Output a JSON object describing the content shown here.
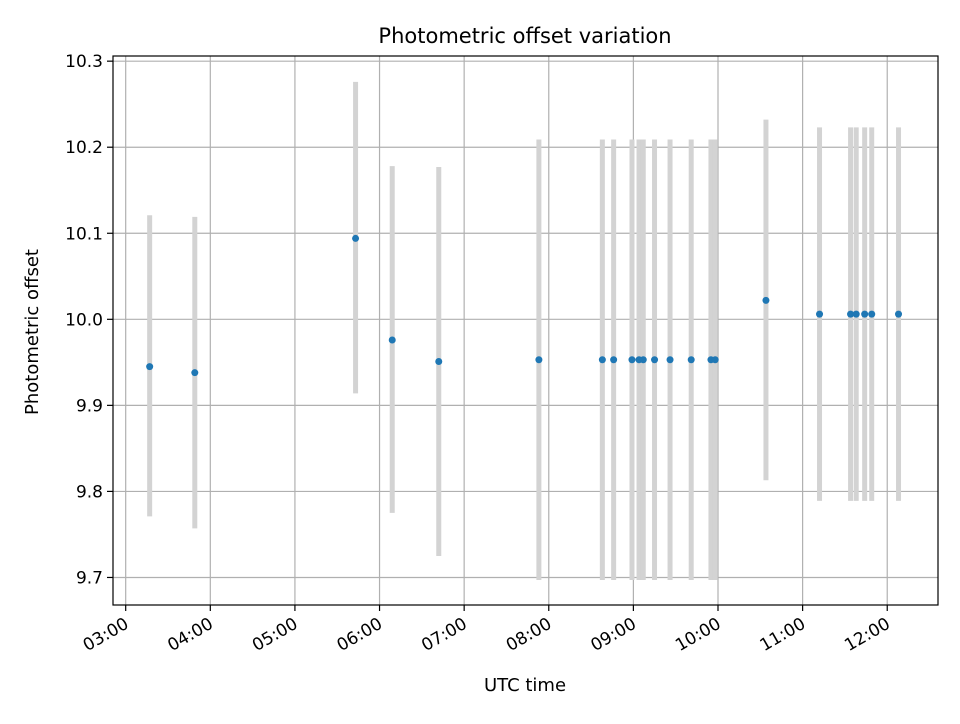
{
  "chart_data": {
    "type": "scatter",
    "title": "Photometric offset variation",
    "xlabel": "UTC time",
    "ylabel": "Photometric offset",
    "x_ticks": [
      "03:00",
      "04:00",
      "05:00",
      "06:00",
      "07:00",
      "08:00",
      "09:00",
      "10:00",
      "11:00",
      "12:00"
    ],
    "y_ticks": [
      "9.7",
      "9.8",
      "9.9",
      "10.0",
      "10.1",
      "10.2",
      "10.3"
    ],
    "xlim_hours": [
      2.85,
      12.6
    ],
    "ylim": [
      9.668,
      10.306
    ],
    "grid": true,
    "legend": "none",
    "point_color": "#1f77b4",
    "errorbar_color": "#d3d3d3",
    "points": [
      {
        "t": "03:17",
        "y": 9.945,
        "ylo": 9.771,
        "yhi": 10.121
      },
      {
        "t": "03:49",
        "y": 9.938,
        "ylo": 9.757,
        "yhi": 10.119
      },
      {
        "t": "05:43",
        "y": 10.094,
        "ylo": 9.914,
        "yhi": 10.276
      },
      {
        "t": "06:09",
        "y": 9.976,
        "ylo": 9.775,
        "yhi": 10.178
      },
      {
        "t": "06:42",
        "y": 9.951,
        "ylo": 9.725,
        "yhi": 10.177
      },
      {
        "t": "07:53",
        "y": 9.953,
        "ylo": 9.697,
        "yhi": 10.209
      },
      {
        "t": "08:38",
        "y": 9.953,
        "ylo": 9.697,
        "yhi": 10.209
      },
      {
        "t": "08:46",
        "y": 9.953,
        "ylo": 9.697,
        "yhi": 10.209
      },
      {
        "t": "08:59",
        "y": 9.953,
        "ylo": 9.697,
        "yhi": 10.209
      },
      {
        "t": "09:04",
        "y": 9.953,
        "ylo": 9.697,
        "yhi": 10.209
      },
      {
        "t": "09:07",
        "y": 9.953,
        "ylo": 9.697,
        "yhi": 10.209
      },
      {
        "t": "09:15",
        "y": 9.953,
        "ylo": 9.697,
        "yhi": 10.209
      },
      {
        "t": "09:26",
        "y": 9.953,
        "ylo": 9.697,
        "yhi": 10.209
      },
      {
        "t": "09:41",
        "y": 9.953,
        "ylo": 9.697,
        "yhi": 10.209
      },
      {
        "t": "09:55",
        "y": 9.953,
        "ylo": 9.697,
        "yhi": 10.209
      },
      {
        "t": "09:58",
        "y": 9.953,
        "ylo": 9.697,
        "yhi": 10.209
      },
      {
        "t": "10:34",
        "y": 10.022,
        "ylo": 9.813,
        "yhi": 10.232
      },
      {
        "t": "11:12",
        "y": 10.006,
        "ylo": 9.789,
        "yhi": 10.223
      },
      {
        "t": "11:34",
        "y": 10.006,
        "ylo": 9.789,
        "yhi": 10.223
      },
      {
        "t": "11:38",
        "y": 10.006,
        "ylo": 9.789,
        "yhi": 10.223
      },
      {
        "t": "11:44",
        "y": 10.006,
        "ylo": 9.789,
        "yhi": 10.223
      },
      {
        "t": "11:49",
        "y": 10.006,
        "ylo": 9.789,
        "yhi": 10.223
      },
      {
        "t": "12:08",
        "y": 10.006,
        "ylo": 9.789,
        "yhi": 10.223
      }
    ]
  }
}
